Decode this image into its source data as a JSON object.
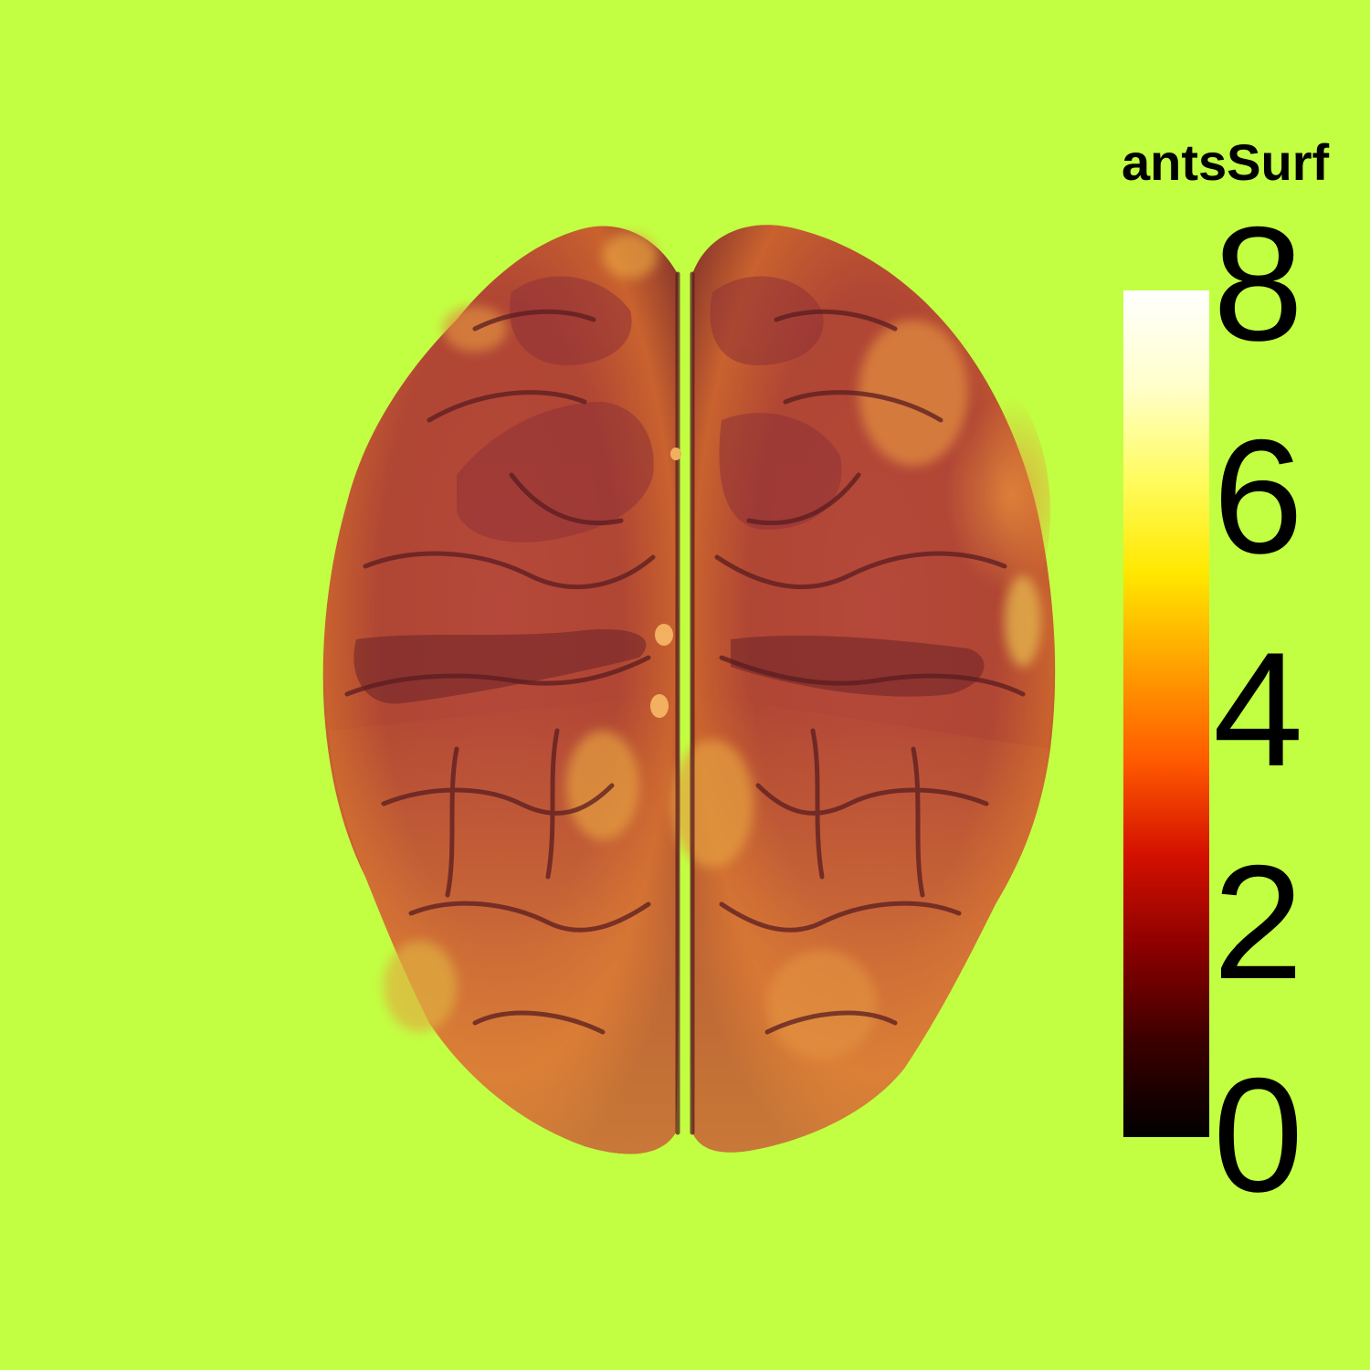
{
  "background_color": "#c2ff42",
  "colorbar": {
    "title": "antsSurf",
    "colormap": "hot",
    "stops": [
      "#000000",
      "#3a0000",
      "#8a0000",
      "#d41000",
      "#ff5a00",
      "#ffa000",
      "#ffe800",
      "#fffc60",
      "#ffffcc",
      "#ffffff"
    ],
    "ticks": [
      "8",
      "6",
      "4",
      "2",
      "0"
    ],
    "min": 0,
    "max": 8
  },
  "brain": {
    "view": "superior",
    "base_color": "#b84a36",
    "dark_color": "#7a2a2a",
    "highlight_color": "#e8953a",
    "sulcus_color": "#5e1f22"
  }
}
